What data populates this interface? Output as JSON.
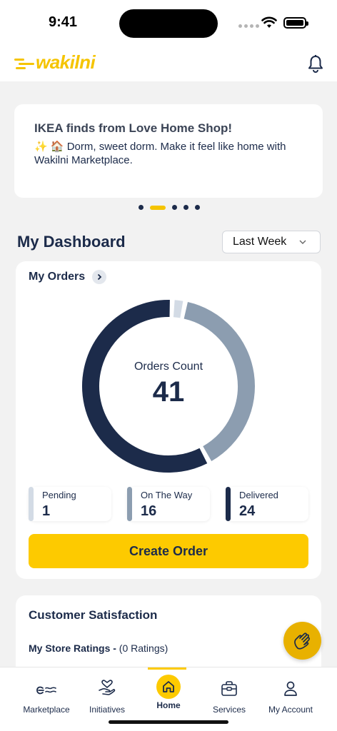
{
  "status_bar": {
    "time": "9:41"
  },
  "header": {
    "logo_text": "wakilni",
    "brand_color": "#f5c400"
  },
  "banner": {
    "title": "IKEA finds from Love Home Shop!",
    "body": "✨ 🏠 Dorm, sweet dorm. Make it feel like home with Wakilni Marketplace.",
    "pages": 5,
    "active_page": 2
  },
  "dashboard": {
    "title": "My Dashboard",
    "period": "Last Week"
  },
  "orders": {
    "title": "My Orders",
    "count_label": "Orders Count",
    "count_value": "41",
    "stats": [
      {
        "label": "Pending",
        "value": "1",
        "color": "#d3dbe5"
      },
      {
        "label": "On The Way",
        "value": "16",
        "color": "#8c9db0"
      },
      {
        "label": "Delivered",
        "value": "24",
        "color": "#1c2b4a"
      }
    ],
    "create_button": "Create Order"
  },
  "satisfaction": {
    "title": "Customer Satisfaction",
    "ratings_label": "My Store Ratings -",
    "ratings_count": "(0 Ratings)"
  },
  "tabs": [
    {
      "label": "Marketplace",
      "icon": "marketplace-icon"
    },
    {
      "label": "Initiatives",
      "icon": "heart-hand-icon"
    },
    {
      "label": "Home",
      "icon": "home-icon",
      "active": true
    },
    {
      "label": "Services",
      "icon": "briefcase-icon"
    },
    {
      "label": "My Account",
      "icon": "user-icon"
    }
  ],
  "colors": {
    "accent": "#fdca00",
    "navy": "#1c2b4a"
  }
}
